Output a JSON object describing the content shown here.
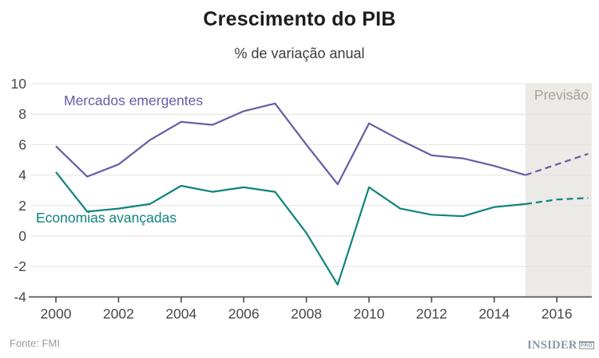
{
  "header": {
    "title": "Crescimento do PIB",
    "subtitle": "% de variação anual"
  },
  "forecast_label": "Previsão",
  "footer": {
    "source": "Fonte: FMI",
    "brand": "INSIDER",
    "brand_suffix": "PRO"
  },
  "colors": {
    "emerging": "#6a5aa6",
    "advanced": "#0f837d",
    "forecast_band": "#eceae6",
    "gridline": "#e4e2de",
    "axis": "#4c4c4c",
    "tick_text": "#474747"
  },
  "chart_data": {
    "type": "line",
    "title": "Crescimento do PIB",
    "subtitle": "% de variação anual",
    "xlabel": "",
    "ylabel": "% de variação anual",
    "x": [
      2000,
      2001,
      2002,
      2003,
      2004,
      2005,
      2006,
      2007,
      2008,
      2009,
      2010,
      2011,
      2012,
      2013,
      2014,
      2015,
      2016,
      2017
    ],
    "series": [
      {
        "name": "Mercados emergentes",
        "color": "#6a5aa6",
        "values": [
          5.9,
          3.9,
          4.7,
          6.3,
          7.5,
          7.3,
          8.2,
          8.7,
          6.0,
          3.4,
          7.4,
          6.3,
          5.3,
          5.1,
          4.6,
          4.0,
          4.7,
          5.4
        ]
      },
      {
        "name": "Economias avançadas",
        "color": "#0f837d",
        "values": [
          4.2,
          1.6,
          1.8,
          2.1,
          3.3,
          2.9,
          3.2,
          2.9,
          0.2,
          -3.2,
          3.2,
          1.8,
          1.4,
          1.3,
          1.9,
          2.1,
          2.4,
          2.5
        ]
      }
    ],
    "forecast_start_x": 2015,
    "forecast_region_label": "Previsão",
    "x_ticks": [
      2000,
      2002,
      2004,
      2006,
      2008,
      2010,
      2012,
      2014,
      2016
    ],
    "y_ticks": [
      10,
      8,
      6,
      4,
      2,
      0,
      -2,
      -4
    ],
    "xlim": [
      2000,
      2017
    ],
    "ylim": [
      -4,
      10
    ],
    "grid": true,
    "legend_position": "inline-labels"
  }
}
